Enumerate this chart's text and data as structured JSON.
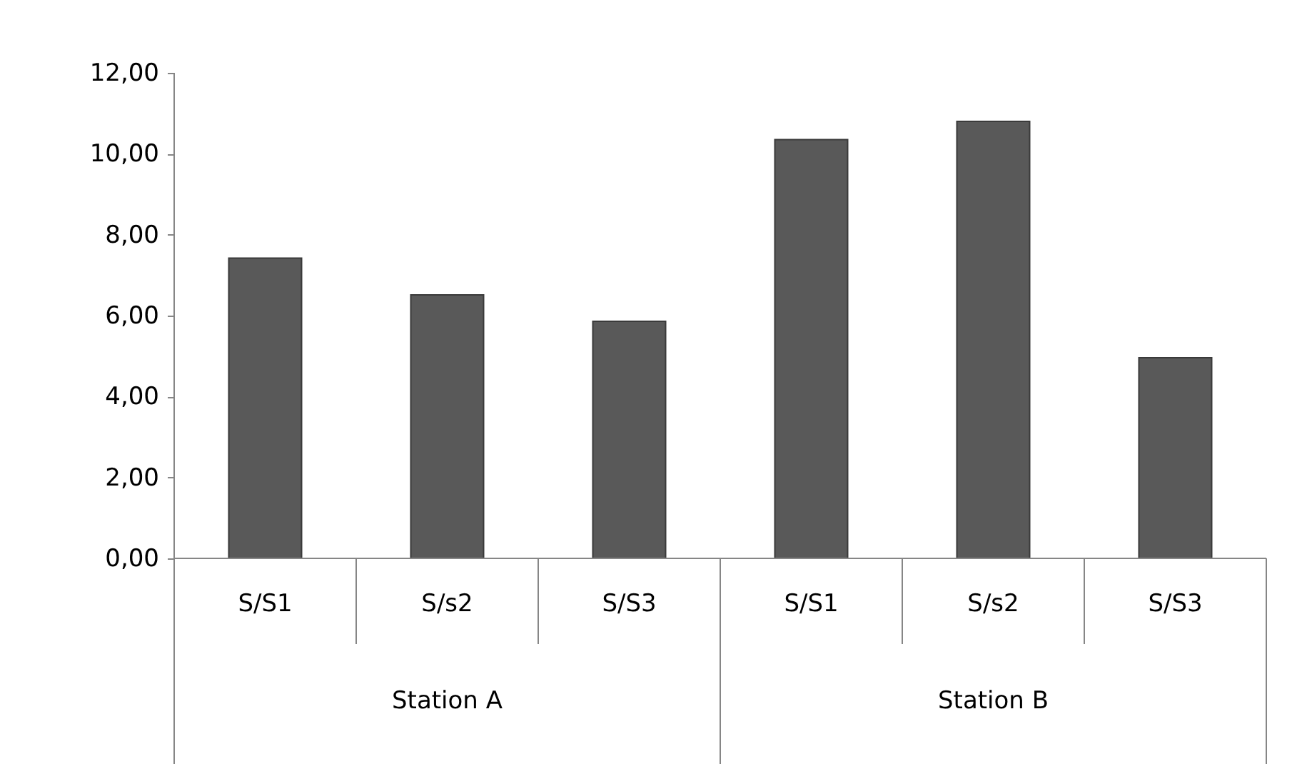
{
  "chart_data": {
    "type": "bar",
    "categories": [
      "S/S1",
      "S/s2",
      "S/S3",
      "S/S1",
      "S/s2",
      "S/S3"
    ],
    "values": [
      7.42,
      6.51,
      5.86,
      10.35,
      10.8,
      4.96
    ],
    "color": "#595959",
    "ylim": [
      0,
      12
    ],
    "yticks": [
      {
        "value": 0,
        "label": "0,00"
      },
      {
        "value": 2,
        "label": "2,00"
      },
      {
        "value": 4,
        "label": "4,00"
      },
      {
        "value": 6,
        "label": "6,00"
      },
      {
        "value": 8,
        "label": "8,00"
      },
      {
        "value": 10,
        "label": "10,00"
      },
      {
        "value": 12,
        "label": "12,00"
      }
    ],
    "annotations": [
      "Station A",
      "Station B"
    ],
    "grid": false
  }
}
